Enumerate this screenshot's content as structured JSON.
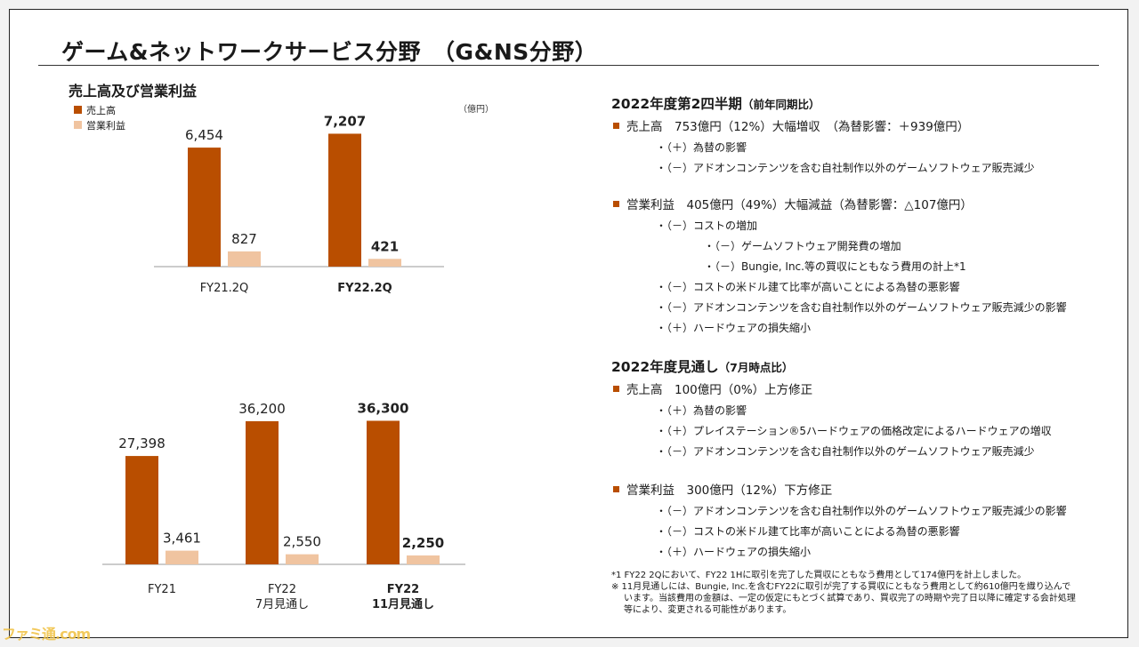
{
  "slide": {
    "title": "ゲーム&ネットワークサービス分野　（G&NS分野）"
  },
  "left_section": {
    "title": "売上高及び営業利益",
    "unit": "（億円）",
    "legend": [
      {
        "label": "売上高",
        "color": "#b94e00"
      },
      {
        "label": "営業利益",
        "color": "#f0c4a0"
      }
    ]
  },
  "chart_data": [
    {
      "type": "bar",
      "categories": [
        "FY21.2Q",
        "FY22.2Q"
      ],
      "category_labels": [
        [
          "FY21.2Q"
        ],
        [
          "FY22.2Q"
        ]
      ],
      "bold_categories": [
        false,
        true
      ],
      "series": [
        {
          "name": "売上高",
          "values": [
            6454,
            7207
          ],
          "labels": [
            "6,454",
            "7,207"
          ]
        },
        {
          "name": "営業利益",
          "values": [
            827,
            421
          ],
          "labels": [
            "827",
            "421"
          ]
        }
      ],
      "ylim": [
        0,
        8000
      ],
      "grid": false,
      "legend_position": "top-left"
    },
    {
      "type": "bar",
      "categories": [
        "FY21",
        "FY22 7月見通し",
        "FY22 11月見通し"
      ],
      "category_labels": [
        [
          "FY21"
        ],
        [
          "FY22",
          "7月見通し"
        ],
        [
          "FY22",
          "11月見通し"
        ]
      ],
      "bold_categories": [
        false,
        false,
        true
      ],
      "series": [
        {
          "name": "売上高",
          "values": [
            27398,
            36200,
            36300
          ],
          "labels": [
            "27,398",
            "36,200",
            "36,300"
          ]
        },
        {
          "name": "営業利益",
          "values": [
            3461,
            2550,
            2250
          ],
          "labels": [
            "3,461",
            "2,550",
            "2,250"
          ]
        }
      ],
      "ylim": [
        0,
        40000
      ],
      "grid": false
    }
  ],
  "right_section": {
    "q2": {
      "heading": "2022年度第2四半期",
      "heading_note": "（前年同期比）",
      "sales": {
        "line": "売上高　753億円（12%）大幅増収　（為替影響：＋939億円）",
        "items": [
          "・（＋）為替の影響",
          "・（－）アドオンコンテンツを含む自社制作以外のゲームソフトウェア販売減少"
        ]
      },
      "op": {
        "line": "営業利益　405億円（49%）大幅減益（為替影響：△107億円）",
        "items": [
          "・（－）コストの増加",
          "・（－）コストの米ドル建て比率が高いことによる為替の悪影響",
          "・（－）アドオンコンテンツを含む自社制作以外のゲームソフトウェア販売減少の影響",
          "・（＋）ハードウェアの損失縮小"
        ],
        "cost_subitems": [
          "・（－）ゲームソフトウェア開発費の増加",
          "・（－）Bungie, Inc.等の買収にともなう費用の計上*1"
        ]
      }
    },
    "forecast": {
      "heading": "2022年度見通し",
      "heading_note": "（7月時点比）",
      "sales": {
        "line": "売上高　100億円（0%）上方修正",
        "items": [
          "・（＋）為替の影響",
          "・（＋）プレイステーション®5ハードウェアの価格改定によるハードウェアの増収",
          "・（－）アドオンコンテンツを含む自社制作以外のゲームソフトウェア販売減少"
        ]
      },
      "op": {
        "line": "営業利益　300億円（12%）下方修正",
        "items": [
          "・（－）アドオンコンテンツを含む自社制作以外のゲームソフトウェア販売減少の影響",
          "・（－）コストの米ドル建て比率が高いことによる為替の悪影響",
          "・（＋）ハードウェアの損失縮小"
        ]
      }
    }
  },
  "notes": {
    "note1": "*1 FY22 2Qにおいて、FY22 1Hに取引を完了した買収にともなう費用として174億円を計上しました。",
    "note2": [
      "※ 11月見通しには、Bungie, Inc.を含むFY22に取引が完了する買収にともなう費用として約610億円を織り込んで",
      "います。当該費用の金額は、一定の仮定にもとづく試算であり、買収完了の時期や完了日以降に確定する会計処理",
      "等により、変更される可能性があります。"
    ]
  },
  "watermark": "ファミ通.com"
}
